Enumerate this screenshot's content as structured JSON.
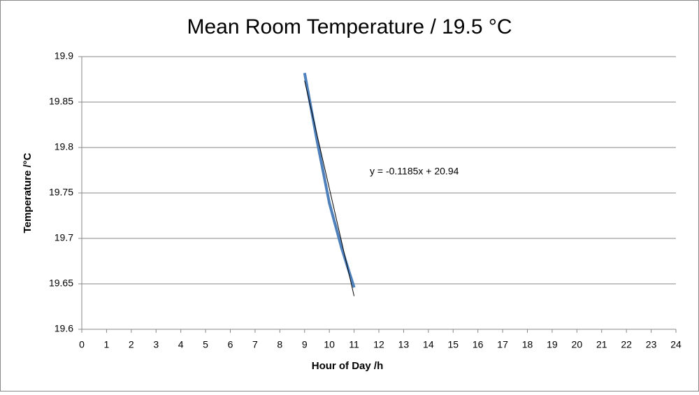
{
  "chart_data": {
    "type": "line",
    "title": "Mean Room Temperature / 19.5 °C",
    "x_label": "Hour of Day /h",
    "y_label": "Temperature /°C",
    "annotation": "y = -0.1185x + 20.94",
    "xlim": [
      0,
      24
    ],
    "xticks": [
      0,
      1,
      2,
      3,
      4,
      5,
      6,
      7,
      8,
      9,
      10,
      11,
      12,
      13,
      14,
      15,
      16,
      17,
      18,
      19,
      20,
      21,
      22,
      23,
      24
    ],
    "ylim": [
      19.6,
      19.9
    ],
    "yticks": [
      19.6,
      19.65,
      19.7,
      19.75,
      19.8,
      19.85,
      19.9
    ],
    "grid": true,
    "series": [
      {
        "color": "#4f81bd",
        "width": 4,
        "x": [
          9,
          9.5,
          10,
          10.5,
          11
        ],
        "values": [
          19.882,
          19.808,
          19.739,
          19.689,
          19.646
        ]
      },
      {
        "color": "#000000",
        "width": 1,
        "x": [
          9,
          11
        ],
        "values": [
          19.8735,
          19.6365
        ]
      }
    ]
  }
}
